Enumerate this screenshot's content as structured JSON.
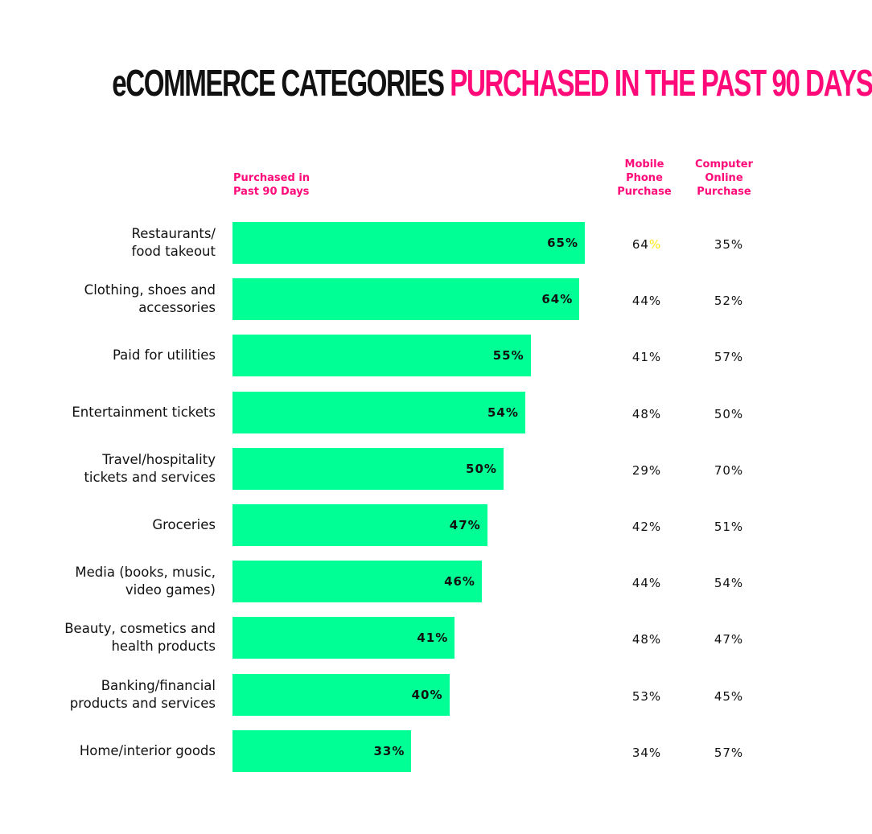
{
  "title": {
    "part1": "eCOMMERCE CATEGORIES",
    "part2": "PURCHASED IN THE PAST 90 DAYS"
  },
  "headers": {
    "bar": "Purchased in\nPast 90 Days",
    "mobile": "Mobile\nPhone\nPurchase",
    "computer": "Computer\nOnline\nPurchase"
  },
  "colors": {
    "bar": "#00ff95",
    "accent": "#ff0a78",
    "highlight": "#ffe81a"
  },
  "chart_data": {
    "type": "bar",
    "title": "eCOMMERCE CATEGORIES PURCHASED IN THE PAST 90 DAYS",
    "orientation": "horizontal",
    "categories": [
      "Restaurants/\nfood takeout",
      "Clothing, shoes and\naccessories",
      "Paid for utilities",
      "Entertainment tickets",
      "Travel/hospitality\ntickets and services",
      "Groceries",
      "Media (books, music,\nvideo games)",
      "Beauty, cosmetics and\nhealth products",
      "Banking/financial\nproducts and services",
      "Home/interior goods"
    ],
    "series": [
      {
        "name": "Purchased in Past 90 Days",
        "values": [
          65,
          64,
          55,
          54,
          50,
          47,
          46,
          41,
          40,
          33
        ]
      },
      {
        "name": "Mobile Phone Purchase",
        "values": [
          64,
          44,
          41,
          48,
          29,
          42,
          44,
          48,
          53,
          34
        ]
      },
      {
        "name": "Computer Online Purchase",
        "values": [
          35,
          52,
          57,
          50,
          70,
          51,
          54,
          47,
          45,
          57
        ]
      }
    ],
    "unit": "%",
    "xlim": [
      0,
      100
    ]
  }
}
